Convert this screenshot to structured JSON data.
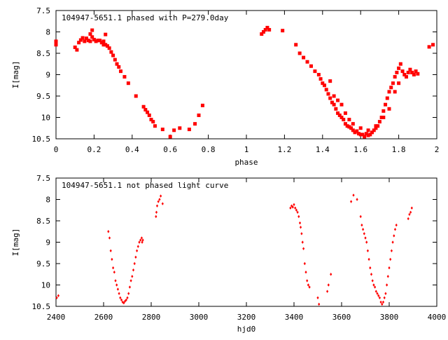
{
  "colors": {
    "points": "#ff0000",
    "axes": "#000000",
    "background": "#ffffff"
  },
  "chart_data": [
    {
      "type": "scatter",
      "title": "104947-5651.1 phased with P=279.0day",
      "xlabel": "phase",
      "ylabel": "I[mag]",
      "xlim": [
        0,
        2
      ],
      "ylim": [
        7.5,
        10.5
      ],
      "y_inverted": true,
      "grid": false,
      "legend": "none",
      "x_ticks": [
        "0",
        "0.2",
        "0.4",
        "0.6",
        "0.8",
        "1",
        "1.2",
        "1.4",
        "1.6",
        "1.8",
        "2"
      ],
      "y_ticks": [
        "7.5",
        "8",
        "8.5",
        "9",
        "9.5",
        "10",
        "10.5"
      ],
      "marker": "square",
      "points": [
        [
          0.0,
          8.22
        ],
        [
          0.0,
          8.3
        ],
        [
          0.1,
          8.36
        ],
        [
          0.11,
          8.42
        ],
        [
          0.12,
          8.25
        ],
        [
          0.13,
          8.19
        ],
        [
          0.14,
          8.14
        ],
        [
          0.15,
          8.22
        ],
        [
          0.16,
          8.15
        ],
        [
          0.17,
          8.2
        ],
        [
          0.18,
          8.05
        ],
        [
          0.18,
          8.22
        ],
        [
          0.19,
          7.96
        ],
        [
          0.19,
          8.12
        ],
        [
          0.2,
          8.18
        ],
        [
          0.21,
          8.22
        ],
        [
          0.22,
          8.2
        ],
        [
          0.23,
          8.2
        ],
        [
          0.24,
          8.25
        ],
        [
          0.25,
          8.22
        ],
        [
          0.25,
          8.3
        ],
        [
          0.26,
          8.3
        ],
        [
          0.26,
          8.06
        ],
        [
          0.27,
          8.33
        ],
        [
          0.28,
          8.38
        ],
        [
          0.29,
          8.47
        ],
        [
          0.3,
          8.55
        ],
        [
          0.31,
          8.65
        ],
        [
          0.32,
          8.75
        ],
        [
          0.33,
          8.82
        ],
        [
          0.34,
          8.92
        ],
        [
          0.36,
          9.05
        ],
        [
          0.38,
          9.2
        ],
        [
          0.42,
          9.5
        ],
        [
          0.46,
          9.75
        ],
        [
          0.47,
          9.82
        ],
        [
          0.48,
          9.88
        ],
        [
          0.49,
          9.95
        ],
        [
          0.5,
          10.05
        ],
        [
          0.51,
          10.1
        ],
        [
          0.52,
          10.2
        ],
        [
          0.56,
          10.28
        ],
        [
          0.6,
          10.45
        ],
        [
          0.62,
          10.3
        ],
        [
          0.65,
          10.25
        ],
        [
          0.7,
          10.28
        ],
        [
          0.73,
          10.15
        ],
        [
          0.75,
          9.95
        ],
        [
          0.77,
          9.72
        ],
        [
          1.08,
          8.05
        ],
        [
          1.09,
          8.0
        ],
        [
          1.1,
          7.95
        ],
        [
          1.11,
          7.9
        ],
        [
          1.12,
          7.95
        ],
        [
          1.19,
          7.97
        ],
        [
          1.26,
          8.3
        ],
        [
          1.28,
          8.5
        ],
        [
          1.3,
          8.6
        ],
        [
          1.32,
          8.7
        ],
        [
          1.34,
          8.8
        ],
        [
          1.36,
          8.92
        ],
        [
          1.38,
          9.0
        ],
        [
          1.39,
          9.1
        ],
        [
          1.4,
          9.2
        ],
        [
          1.41,
          9.25
        ],
        [
          1.42,
          9.35
        ],
        [
          1.43,
          9.45
        ],
        [
          1.44,
          9.55
        ],
        [
          1.45,
          9.65
        ],
        [
          1.46,
          9.7
        ],
        [
          1.47,
          9.8
        ],
        [
          1.48,
          9.9
        ],
        [
          1.49,
          9.95
        ],
        [
          1.5,
          10.0
        ],
        [
          1.51,
          10.05
        ],
        [
          1.52,
          10.15
        ],
        [
          1.53,
          10.2
        ],
        [
          1.54,
          10.22
        ],
        [
          1.55,
          10.25
        ],
        [
          1.56,
          10.3
        ],
        [
          1.57,
          10.35
        ],
        [
          1.58,
          10.32
        ],
        [
          1.59,
          10.38
        ],
        [
          1.6,
          10.4
        ],
        [
          1.61,
          10.4
        ],
        [
          1.62,
          10.45
        ],
        [
          1.63,
          10.38
        ],
        [
          1.64,
          10.42
        ],
        [
          1.65,
          10.4
        ],
        [
          1.66,
          10.35
        ],
        [
          1.67,
          10.3
        ],
        [
          1.68,
          10.25
        ],
        [
          1.69,
          10.2
        ],
        [
          1.7,
          10.1
        ],
        [
          1.71,
          10.0
        ],
        [
          1.72,
          9.85
        ],
        [
          1.73,
          9.7
        ],
        [
          1.74,
          9.55
        ],
        [
          1.75,
          9.4
        ],
        [
          1.76,
          9.3
        ],
        [
          1.77,
          9.2
        ],
        [
          1.78,
          9.05
        ],
        [
          1.79,
          8.95
        ],
        [
          1.8,
          8.85
        ],
        [
          1.81,
          8.75
        ],
        [
          1.82,
          8.92
        ],
        [
          1.83,
          9.0
        ],
        [
          1.84,
          9.05
        ],
        [
          1.85,
          8.95
        ],
        [
          1.86,
          8.88
        ],
        [
          1.87,
          8.95
        ],
        [
          1.88,
          9.0
        ],
        [
          1.89,
          8.92
        ],
        [
          1.9,
          8.98
        ],
        [
          1.96,
          8.35
        ],
        [
          1.98,
          8.3
        ],
        [
          1.44,
          9.15
        ],
        [
          1.46,
          9.5
        ],
        [
          1.48,
          9.6
        ],
        [
          1.5,
          9.7
        ],
        [
          1.52,
          9.9
        ],
        [
          1.54,
          10.05
        ],
        [
          1.56,
          10.15
        ],
        [
          1.6,
          10.25
        ],
        [
          1.64,
          10.3
        ],
        [
          1.68,
          10.2
        ],
        [
          1.72,
          10.0
        ],
        [
          1.75,
          9.8
        ],
        [
          1.78,
          9.4
        ],
        [
          1.8,
          9.2
        ]
      ]
    },
    {
      "type": "scatter",
      "title": "104947-5651.1 not phased light curve",
      "xlabel": "hjd0",
      "ylabel": "I[mag]",
      "xlim": [
        2400,
        4000
      ],
      "ylim": [
        7.5,
        10.5
      ],
      "y_inverted": true,
      "grid": false,
      "legend": "none",
      "x_ticks": [
        "2400",
        "2600",
        "2800",
        "3000",
        "3200",
        "3400",
        "3600",
        "3800",
        "4000"
      ],
      "y_ticks": [
        "7.5",
        "8",
        "8.5",
        "9",
        "9.5",
        "10",
        "10.5"
      ],
      "marker": "diamond",
      "points": [
        [
          2403,
          10.3
        ],
        [
          2410,
          10.25
        ],
        [
          2620,
          8.75
        ],
        [
          2625,
          8.9
        ],
        [
          2630,
          9.2
        ],
        [
          2635,
          9.4
        ],
        [
          2640,
          9.6
        ],
        [
          2645,
          9.7
        ],
        [
          2650,
          9.9
        ],
        [
          2655,
          10.0
        ],
        [
          2660,
          10.1
        ],
        [
          2665,
          10.2
        ],
        [
          2670,
          10.3
        ],
        [
          2675,
          10.35
        ],
        [
          2680,
          10.4
        ],
        [
          2685,
          10.42
        ],
        [
          2690,
          10.38
        ],
        [
          2695,
          10.35
        ],
        [
          2700,
          10.3
        ],
        [
          2705,
          10.2
        ],
        [
          2710,
          10.05
        ],
        [
          2715,
          9.9
        ],
        [
          2720,
          9.8
        ],
        [
          2725,
          9.65
        ],
        [
          2730,
          9.5
        ],
        [
          2735,
          9.35
        ],
        [
          2740,
          9.2
        ],
        [
          2745,
          9.1
        ],
        [
          2750,
          9.0
        ],
        [
          2755,
          8.95
        ],
        [
          2760,
          8.9
        ],
        [
          2762,
          9.0
        ],
        [
          2765,
          8.95
        ],
        [
          2820,
          8.4
        ],
        [
          2822,
          8.3
        ],
        [
          2825,
          8.15
        ],
        [
          2830,
          8.05
        ],
        [
          2835,
          8.0
        ],
        [
          2840,
          7.92
        ],
        [
          2848,
          8.1
        ],
        [
          3385,
          8.2
        ],
        [
          3390,
          8.15
        ],
        [
          3395,
          8.18
        ],
        [
          3400,
          8.12
        ],
        [
          3405,
          8.2
        ],
        [
          3410,
          8.25
        ],
        [
          3415,
          8.3
        ],
        [
          3420,
          8.4
        ],
        [
          3425,
          8.55
        ],
        [
          3428,
          8.65
        ],
        [
          3432,
          8.8
        ],
        [
          3436,
          9.0
        ],
        [
          3440,
          9.15
        ],
        [
          3445,
          9.5
        ],
        [
          3450,
          9.7
        ],
        [
          3455,
          9.9
        ],
        [
          3460,
          10.0
        ],
        [
          3465,
          10.05
        ],
        [
          3500,
          10.3
        ],
        [
          3505,
          10.45
        ],
        [
          3540,
          10.15
        ],
        [
          3545,
          10.0
        ],
        [
          3555,
          9.75
        ],
        [
          3640,
          8.05
        ],
        [
          3650,
          7.9
        ],
        [
          3665,
          8.0
        ],
        [
          3680,
          8.4
        ],
        [
          3685,
          8.6
        ],
        [
          3690,
          8.7
        ],
        [
          3695,
          8.8
        ],
        [
          3700,
          8.9
        ],
        [
          3705,
          9.0
        ],
        [
          3710,
          9.2
        ],
        [
          3715,
          9.4
        ],
        [
          3720,
          9.6
        ],
        [
          3725,
          9.75
        ],
        [
          3730,
          9.9
        ],
        [
          3735,
          10.0
        ],
        [
          3740,
          10.05
        ],
        [
          3745,
          10.15
        ],
        [
          3750,
          10.2
        ],
        [
          3755,
          10.25
        ],
        [
          3760,
          10.3
        ],
        [
          3765,
          10.4
        ],
        [
          3770,
          10.45
        ],
        [
          3775,
          10.4
        ],
        [
          3780,
          10.3
        ],
        [
          3785,
          10.2
        ],
        [
          3790,
          10.0
        ],
        [
          3795,
          9.8
        ],
        [
          3800,
          9.6
        ],
        [
          3805,
          9.4
        ],
        [
          3810,
          9.2
        ],
        [
          3815,
          9.0
        ],
        [
          3820,
          8.85
        ],
        [
          3825,
          8.7
        ],
        [
          3830,
          8.6
        ],
        [
          3880,
          8.45
        ],
        [
          3885,
          8.35
        ],
        [
          3890,
          8.3
        ],
        [
          3895,
          8.2
        ]
      ]
    }
  ]
}
